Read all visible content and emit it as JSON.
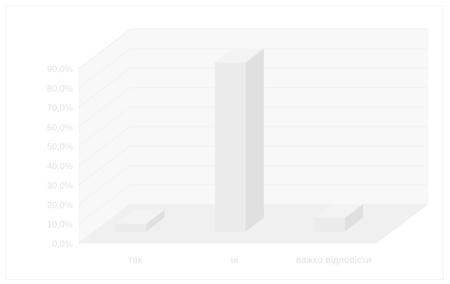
{
  "chart_data": {
    "type": "bar",
    "categories": [
      "так",
      "ні",
      "важко відповісти"
    ],
    "values": [
      4.0,
      87.0,
      7.0
    ],
    "ylim": [
      0,
      90
    ],
    "yticks": [
      "0,0%",
      "10,0%",
      "20,0%",
      "30,0%",
      "40,0%",
      "50,0%",
      "60,0%",
      "70,0%",
      "80,0%",
      "90,0%"
    ],
    "grid": true,
    "legend": "none",
    "colors": {
      "bar_front": "#ebebeb",
      "bar_side": "#e0e0e0",
      "bar_top": "#f3f3f3",
      "wall": "#f8f8f8",
      "floor": "#f0f0f0",
      "text": "#e3e3e3",
      "grid": "#f0f0f0"
    }
  }
}
